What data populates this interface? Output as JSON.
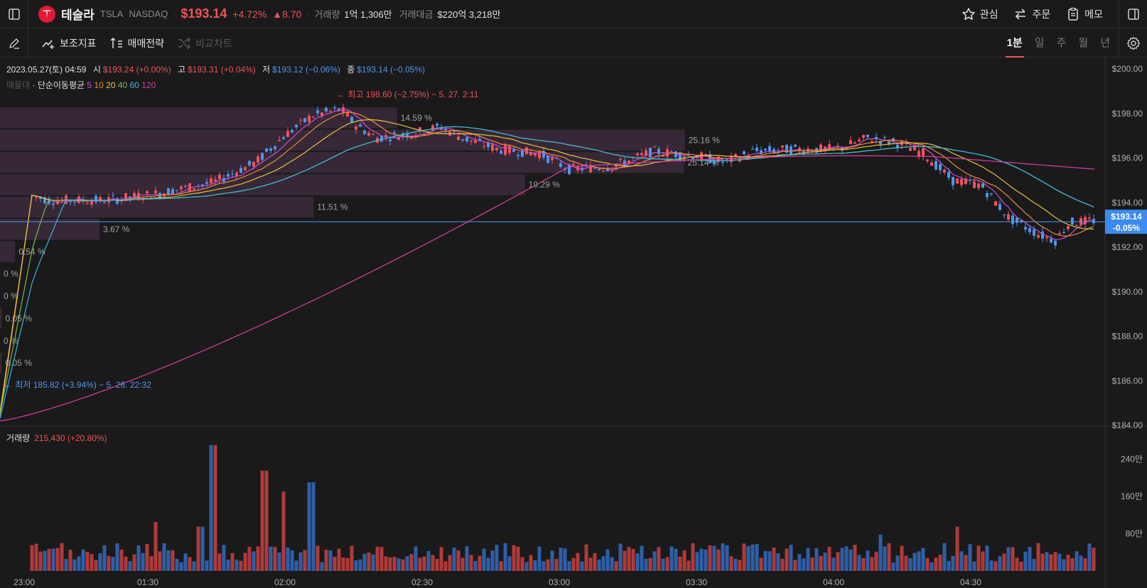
{
  "header": {
    "name": "테슬라",
    "ticker": "TSLA",
    "exchange": "NASDAQ",
    "price": "$193.14",
    "change_pct": "+4.72%",
    "change_abs": "▲8.70",
    "volume_label": "거래량",
    "volume_value": "1억 1,306만",
    "amount_label": "거래대금",
    "amount_value": "$220억 3,218만",
    "actions": {
      "watch": "관심",
      "order": "주문",
      "memo": "메모"
    }
  },
  "toolbar": {
    "indicators": "보조지표",
    "strategy": "매매전략",
    "compare": "비교차트",
    "periods": [
      "1분",
      "일",
      "주",
      "월",
      "년"
    ],
    "active_period": "1분"
  },
  "ohlc": {
    "datetime": "2023.05.27(토) 04:59",
    "open_label": "시",
    "open": "$193.24 (+0.00%)",
    "high_label": "고",
    "high": "$193.31 (+0.04%)",
    "low_label": "저",
    "low": "$193.12 (−0.06%)",
    "close_label": "종",
    "close": "$193.14 (−0.05%)"
  },
  "ma_legend": {
    "faded_label": "매물대",
    "title": "단순이동평균",
    "periods": [
      "5",
      "10",
      "20",
      "40",
      "60",
      "120"
    ]
  },
  "colors": {
    "up": "#f0515a",
    "down": "#4d96f0",
    "ma5": "#c94fd8",
    "ma10": "#f08a3a",
    "ma20": "#e8c240",
    "ma40": "#7ab84a",
    "ma60": "#3ab4e0",
    "ma120": "#e03ca0"
  },
  "chart_data": {
    "type": "candlestick",
    "x_ticks": [
      "23:00",
      "01:30",
      "02:00",
      "02:30",
      "03:00",
      "03:30",
      "04:00",
      "04:30"
    ],
    "y_ticks": [
      "$200.00",
      "$198.00",
      "$196.00",
      "$194.00",
      "$192.00",
      "$190.00",
      "$188.00",
      "$186.00",
      "$184.00"
    ],
    "ylim": [
      184,
      200
    ],
    "current_price_tag": {
      "price": "$193.14",
      "pct": "-0.05%",
      "value": 193.14
    },
    "high_annotation": {
      "text": "← 최고 198.60 (−2.75%) − 5. 27. 2:11",
      "value": 198.6
    },
    "low_annotation": {
      "text": "← 최저 185.82 (+3.94%) − 5. 26. 22:32",
      "value": 185.82
    },
    "volume_profile": [
      {
        "low": 197.3,
        "high": 198.3,
        "pct": "14.59 %",
        "share": 0.447
      },
      {
        "low": 196.3,
        "high": 197.3,
        "pct": "25.16 %",
        "share": 0.771
      },
      {
        "low": 195.3,
        "high": 196.3,
        "pct": "25.14 %",
        "share": 0.77
      },
      {
        "low": 194.3,
        "high": 195.3,
        "pct": "19.29 %",
        "share": 0.591
      },
      {
        "low": 193.3,
        "high": 194.3,
        "pct": "11.51 %",
        "share": 0.353
      },
      {
        "low": 192.3,
        "high": 193.3,
        "pct": "3.67 %",
        "share": 0.112
      },
      {
        "low": 191.3,
        "high": 192.3,
        "pct": "0.54 %",
        "share": 0.017
      },
      {
        "low": 190.3,
        "high": 191.3,
        "pct": "0 %",
        "share": 0
      },
      {
        "low": 189.3,
        "high": 190.3,
        "pct": "0 %",
        "share": 0
      },
      {
        "low": 188.3,
        "high": 189.3,
        "pct": "0.05 %",
        "share": 0.002
      },
      {
        "low": 187.3,
        "high": 188.3,
        "pct": "0 %",
        "share": 0
      },
      {
        "low": 186.3,
        "high": 187.3,
        "pct": "0.05 %",
        "share": 0.002
      }
    ],
    "volume": {
      "label": "거래량",
      "value": "215,430 (+20.80%)",
      "y_ticks": [
        "240만",
        "160만",
        "80만"
      ],
      "ylim": [
        0,
        2800000
      ]
    }
  }
}
